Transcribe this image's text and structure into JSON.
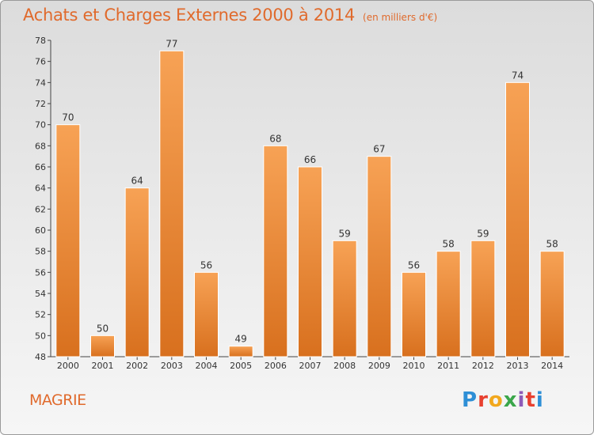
{
  "header": {
    "title": "Achats et Charges Externes 2000 à 2014",
    "subtitle": "(en milliers d'€)"
  },
  "footer": {
    "commune": "MAGRIE",
    "brand_letters": [
      "P",
      "r",
      "o",
      "x",
      "i",
      "t",
      "i"
    ]
  },
  "colors": {
    "accent": "#e06a2c",
    "bar_top": "#f7a255",
    "bar_bottom": "#d8701e"
  },
  "chart_data": {
    "type": "bar",
    "categories": [
      "2000",
      "2001",
      "2002",
      "2003",
      "2004",
      "2005",
      "2006",
      "2007",
      "2008",
      "2009",
      "2010",
      "2011",
      "2012",
      "2013",
      "2014"
    ],
    "values": [
      70,
      50,
      64,
      77,
      56,
      49,
      68,
      66,
      59,
      67,
      56,
      58,
      59,
      74,
      58
    ],
    "title": "Achats et Charges Externes 2000 à 2014",
    "xlabel": "",
    "ylabel": "",
    "ylim": [
      48,
      78
    ],
    "yticks": [
      48,
      50,
      52,
      54,
      56,
      58,
      60,
      62,
      64,
      66,
      68,
      70,
      72,
      74,
      76,
      78
    ],
    "grid": false,
    "legend": "none"
  }
}
